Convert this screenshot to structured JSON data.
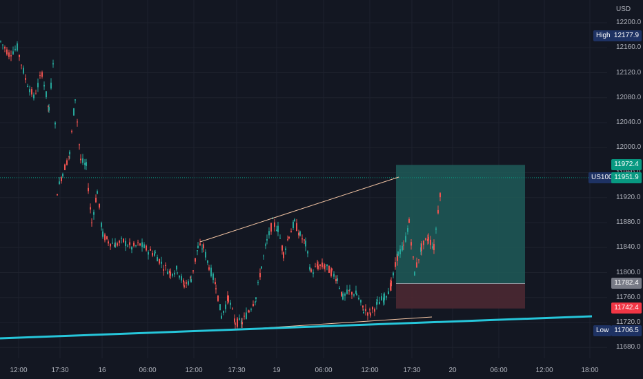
{
  "instrument": {
    "symbol": "US100",
    "currency": "USD"
  },
  "price_axis": {
    "ticks": [
      "12200.0",
      "12160.0",
      "12120.0",
      "12080.0",
      "12040.0",
      "12000.0",
      "11960.0",
      "11920.0",
      "11880.0",
      "11840.0",
      "11800.0",
      "11760.0",
      "11720.0",
      "11680.0"
    ]
  },
  "time_axis": {
    "ticks": [
      "12:00",
      "17:30",
      "16",
      "06:00",
      "12:00",
      "17:30",
      "19",
      "06:00",
      "12:00",
      "17:30",
      "20",
      "06:00",
      "12:00",
      "18:00"
    ]
  },
  "markers": {
    "high_label": "High",
    "high_value": "12177.9",
    "low_label": "Low",
    "low_value": "11706.5",
    "symbol_label": "US100",
    "current_value": "11951.9",
    "target_value": "11972.4",
    "entry_value": "11782.4",
    "stop_value": "11742.4"
  },
  "colors": {
    "background": "#131722",
    "up_candle": "#26a69a",
    "down_candle": "#ef5350",
    "trendline_cyan": "#26c6da",
    "channel_line": "#f5c6a5",
    "profit_zone": "#1e5b58",
    "loss_zone": "#4b2832",
    "target_tag": "#089981",
    "entry_tag": "#787b86",
    "stop_tag": "#f23645",
    "label_tag": "#1e3263"
  },
  "chart_data": {
    "type": "candlestick",
    "y_range": [
      11665,
      12222
    ],
    "price_points": [
      [
        0,
        12170
      ],
      [
        12,
        12150
      ],
      [
        24,
        12160
      ],
      [
        36,
        12110
      ],
      [
        48,
        12080
      ],
      [
        60,
        12120
      ],
      [
        70,
        12060
      ],
      [
        76,
        12140
      ],
      [
        82,
        11930
      ],
      [
        90,
        11960
      ],
      [
        100,
        11990
      ],
      [
        108,
        12080
      ],
      [
        116,
        11980
      ],
      [
        124,
        11970
      ],
      [
        132,
        11880
      ],
      [
        140,
        11930
      ],
      [
        148,
        11860
      ],
      [
        156,
        11850
      ],
      [
        166,
        11845
      ],
      [
        178,
        11850
      ],
      [
        190,
        11840
      ],
      [
        202,
        11845
      ],
      [
        214,
        11835
      ],
      [
        224,
        11830
      ],
      [
        236,
        11810
      ],
      [
        246,
        11800
      ],
      [
        256,
        11805
      ],
      [
        266,
        11780
      ],
      [
        276,
        11790
      ],
      [
        286,
        11840
      ],
      [
        294,
        11840
      ],
      [
        302,
        11810
      ],
      [
        312,
        11780
      ],
      [
        320,
        11730
      ],
      [
        330,
        11760
      ],
      [
        340,
        11720
      ],
      [
        350,
        11720
      ],
      [
        360,
        11740
      ],
      [
        370,
        11760
      ],
      [
        378,
        11810
      ],
      [
        386,
        11850
      ],
      [
        394,
        11880
      ],
      [
        402,
        11870
      ],
      [
        410,
        11830
      ],
      [
        418,
        11860
      ],
      [
        426,
        11880
      ],
      [
        434,
        11860
      ],
      [
        442,
        11845
      ],
      [
        450,
        11800
      ],
      [
        460,
        11810
      ],
      [
        470,
        11810
      ],
      [
        480,
        11800
      ],
      [
        488,
        11790
      ],
      [
        496,
        11760
      ],
      [
        506,
        11770
      ],
      [
        516,
        11765
      ],
      [
        526,
        11740
      ],
      [
        536,
        11735
      ],
      [
        546,
        11750
      ],
      [
        556,
        11760
      ],
      [
        566,
        11780
      ],
      [
        576,
        11830
      ],
      [
        584,
        11840
      ],
      [
        592,
        11880
      ],
      [
        600,
        11800
      ],
      [
        610,
        11840
      ],
      [
        620,
        11855
      ],
      [
        628,
        11840
      ],
      [
        634,
        11900
      ],
      [
        640,
        11955
      ]
    ]
  }
}
